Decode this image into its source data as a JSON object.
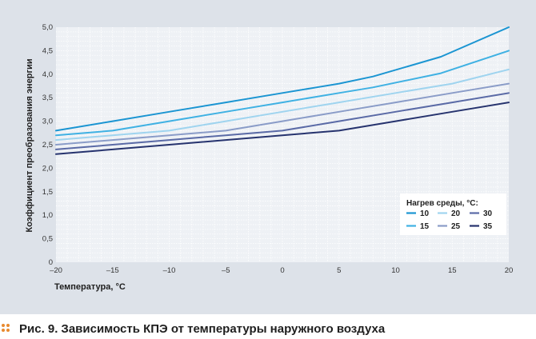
{
  "chart_data": {
    "type": "line",
    "title": "",
    "xlabel": "Температура, °С",
    "ylabel": "Коэффициент преобразования энергии",
    "xlim": [
      -20,
      20
    ],
    "ylim": [
      0,
      5.0
    ],
    "x_ticks": [
      "–20",
      "–15",
      "–10",
      "–5",
      "0",
      "5",
      "10",
      "15",
      "20"
    ],
    "y_ticks": [
      "0",
      "0,5",
      "1,0",
      "1,5",
      "2,0",
      "2,5",
      "3,0",
      "3,5",
      "4,0",
      "4,5",
      "5,0"
    ],
    "grid": true,
    "legend": {
      "title": "Нагрев среды, °С:",
      "placement": "bottom-right"
    },
    "series": [
      {
        "name": "10",
        "color": "#1b95d2",
        "points": [
          [
            -20,
            2.8
          ],
          [
            -15,
            3.0
          ],
          [
            -10,
            3.2
          ],
          [
            -5,
            3.4
          ],
          [
            0,
            3.6
          ],
          [
            3,
            3.72
          ],
          [
            5,
            3.8
          ],
          [
            8,
            3.95
          ],
          [
            14,
            4.37
          ],
          [
            20,
            5.0
          ]
        ]
      },
      {
        "name": "15",
        "color": "#3fb1e3",
        "points": [
          [
            -20,
            2.7
          ],
          [
            -15,
            2.8
          ],
          [
            -10,
            3.0
          ],
          [
            -5,
            3.2
          ],
          [
            0,
            3.4
          ],
          [
            5,
            3.6
          ],
          [
            8,
            3.72
          ],
          [
            14,
            4.02
          ],
          [
            20,
            4.5
          ]
        ]
      },
      {
        "name": "20",
        "color": "#9fd4ef",
        "points": [
          [
            -20,
            2.6
          ],
          [
            -15,
            2.7
          ],
          [
            -10,
            2.8
          ],
          [
            -5,
            3.0
          ],
          [
            0,
            3.2
          ],
          [
            5,
            3.4
          ],
          [
            10,
            3.6
          ],
          [
            15,
            3.8
          ],
          [
            20,
            4.1
          ]
        ]
      },
      {
        "name": "25",
        "color": "#8a9cc8",
        "points": [
          [
            -20,
            2.5
          ],
          [
            -15,
            2.6
          ],
          [
            -10,
            2.7
          ],
          [
            -5,
            2.8
          ],
          [
            0,
            3.0
          ],
          [
            5,
            3.2
          ],
          [
            10,
            3.4
          ],
          [
            15,
            3.6
          ],
          [
            20,
            3.8
          ]
        ]
      },
      {
        "name": "30",
        "color": "#5a6aa6",
        "points": [
          [
            -20,
            2.4
          ],
          [
            -15,
            2.5
          ],
          [
            -10,
            2.6
          ],
          [
            -5,
            2.7
          ],
          [
            0,
            2.8
          ],
          [
            5,
            3.0
          ],
          [
            10,
            3.2
          ],
          [
            15,
            3.4
          ],
          [
            20,
            3.6
          ]
        ]
      },
      {
        "name": "35",
        "color": "#26336e",
        "points": [
          [
            -20,
            2.3
          ],
          [
            -15,
            2.4
          ],
          [
            -10,
            2.5
          ],
          [
            -5,
            2.6
          ],
          [
            0,
            2.7
          ],
          [
            5,
            2.8
          ],
          [
            10,
            3.0
          ],
          [
            15,
            3.2
          ],
          [
            20,
            3.4
          ]
        ]
      }
    ]
  },
  "caption": {
    "number": "Рис. 9.",
    "text": "Зависимость КПЭ от температуры наружного воздуха",
    "bullet_color": "#e88a2f"
  }
}
